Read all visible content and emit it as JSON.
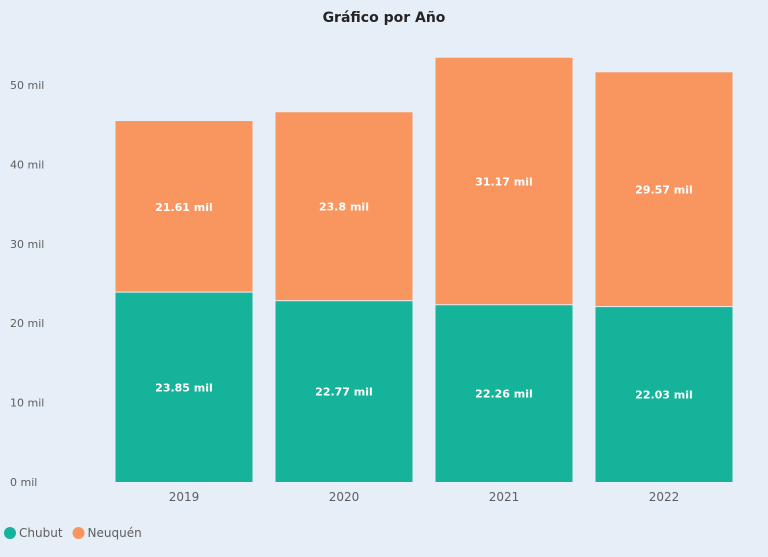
{
  "colors": {
    "background": "#e6eef8",
    "chubut": "#16b39b",
    "neuquen": "#f9955f"
  },
  "chart_data": {
    "type": "bar",
    "stacked": true,
    "title": "Gráfico por Año",
    "categories": [
      "2019",
      "2020",
      "2021",
      "2022"
    ],
    "series": [
      {
        "name": "Chubut",
        "color": "#16b39b",
        "values": [
          23.85,
          22.77,
          22.26,
          22.03
        ],
        "labels": [
          "23.85 mil",
          "22.77 mil",
          "22.26 mil",
          "22.03 mil"
        ]
      },
      {
        "name": "Neuquén",
        "color": "#f9955f",
        "values": [
          21.61,
          23.8,
          31.17,
          29.57
        ],
        "labels": [
          "21.61 mil",
          "23.8 mil",
          "31.17 mil",
          "29.57 mil"
        ]
      }
    ],
    "ylim": [
      0,
      50
    ],
    "yticks": [
      0,
      10,
      20,
      30,
      40,
      50
    ],
    "ytick_labels": [
      "0 mil",
      "10 mil",
      "20 mil",
      "30 mil",
      "40 mil",
      "50 mil"
    ],
    "grid": false,
    "legend_position": "bottom-left"
  }
}
